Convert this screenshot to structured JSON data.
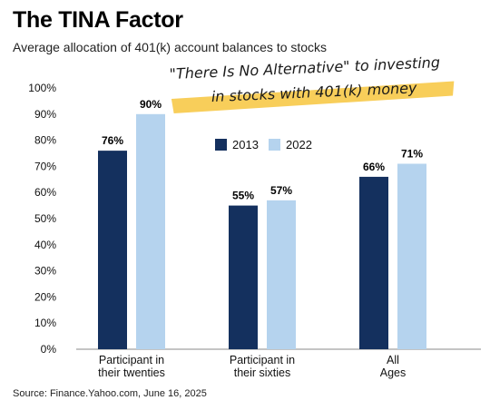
{
  "title": "The TINA Factor",
  "subtitle": "Average allocation of 401(k) account balances to stocks",
  "annotation": {
    "line1": "\"There Is No Alternative\" to investing",
    "line2": "in stocks with 401(k) money",
    "highlight_color": "#F7C948"
  },
  "source": "Source: Finance.Yahoo.com, June 16, 2025",
  "colors": {
    "2013": "#14305E",
    "2022": "#B5D3EE"
  },
  "chart_data": {
    "type": "bar",
    "categories": [
      [
        "Participant in",
        "their twenties"
      ],
      [
        "Participant in",
        "their sixties"
      ],
      [
        "All",
        "Ages"
      ]
    ],
    "series": [
      {
        "name": "2013",
        "values": [
          76,
          55,
          66
        ],
        "labels": [
          "76%",
          "55%",
          "66%"
        ]
      },
      {
        "name": "2022",
        "values": [
          90,
          57,
          71
        ],
        "labels": [
          "90%",
          "57%",
          "71%"
        ]
      }
    ],
    "ylim": [
      0,
      100
    ],
    "yticks": [
      "0%",
      "10%",
      "20%",
      "30%",
      "40%",
      "50%",
      "60%",
      "70%",
      "80%",
      "90%",
      "100%"
    ],
    "legend_position": "center-top",
    "grid": false
  }
}
